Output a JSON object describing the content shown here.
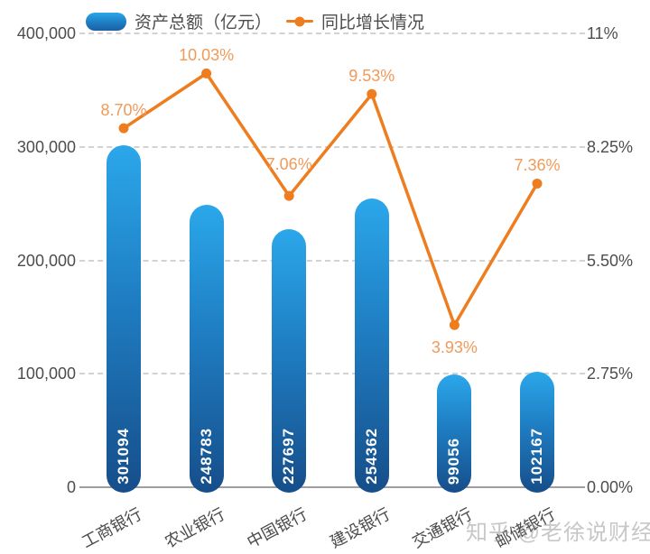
{
  "chart_data": {
    "type": "combo",
    "categories": [
      "工商银行",
      "农业银行",
      "中国银行",
      "建设银行",
      "交通银行",
      "邮储银行"
    ],
    "series": [
      {
        "name": "资产总额（亿元）",
        "type": "bar",
        "axis": "left",
        "values": [
          301094,
          248783,
          227697,
          254362,
          99056,
          102167
        ],
        "labels": [
          "301094",
          "248783",
          "227697",
          "254362",
          "99056",
          "102167"
        ],
        "color_top": "#2ba7ea",
        "color_bottom": "#164e8a"
      },
      {
        "name": "同比增长情况",
        "type": "line",
        "axis": "right",
        "values": [
          8.7,
          10.03,
          7.06,
          9.53,
          3.93,
          7.36
        ],
        "labels": [
          "8.70%",
          "10.03%",
          "7.06%",
          "9.53%",
          "3.93%",
          "7.36%"
        ],
        "label_dy": [
          -30,
          -30,
          -45,
          -30,
          15,
          -30
        ],
        "color": "#ee7d1f",
        "label_color": "#f09a59"
      }
    ],
    "left_axis": {
      "min": 0,
      "max": 400000,
      "ticks": [
        "400,000",
        "300,000",
        "200,000",
        "100,000",
        "0"
      ]
    },
    "right_axis": {
      "min": 0,
      "max": 11,
      "ticks": [
        "11%",
        "8.25%",
        "5.50%",
        "2.75%",
        "0.00%"
      ]
    },
    "grid": "horizontal dashed",
    "legend_position": "top"
  },
  "legend": {
    "bar_label": "资产总额（亿元）",
    "line_label": "同比增长情况"
  },
  "watermark": "知乎 @老徐说财经",
  "colors": {
    "bar_gradient_top": "#2ba7ea",
    "bar_gradient_bottom": "#164e8a",
    "line": "#ee7d1f",
    "line_value_labels": "#f09a59",
    "axis_text": "#4d4d4d",
    "gridline": "#d2d2d2",
    "axis_line": "#9e9e9e",
    "bar_value_text": "#ffffff",
    "watermark_text": "#9a9a9a",
    "background": "#ffffff"
  }
}
